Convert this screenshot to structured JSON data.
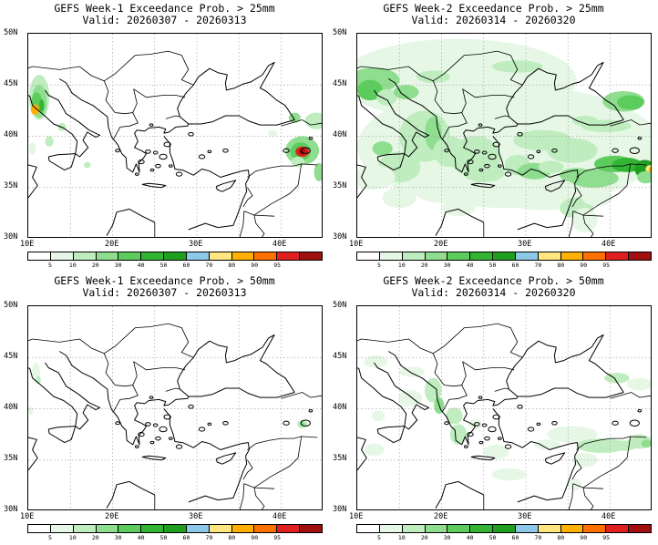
{
  "panels": [
    {
      "title": "GEFS Week-1 Exceedance Prob. > 25mm",
      "valid": "Valid: 20260307 - 20260313"
    },
    {
      "title": "GEFS Week-2 Exceedance Prob. > 25mm",
      "valid": "Valid: 20260314 - 20260320"
    },
    {
      "title": "GEFS Week-1 Exceedance Prob. > 50mm",
      "valid": "Valid: 20260307 - 20260313"
    },
    {
      "title": "GEFS Week-2 Exceedance Prob. > 50mm",
      "valid": "Valid: 20260314 - 20260320"
    }
  ],
  "lat_labels": [
    "50N",
    "45N",
    "40N",
    "35N",
    "30N"
  ],
  "lon_labels": [
    "10E",
    "20E",
    "30E",
    "40E"
  ],
  "colorbar": {
    "thresholds": [
      "5",
      "10",
      "20",
      "30",
      "40",
      "50",
      "60",
      "70",
      "80",
      "90",
      "95"
    ],
    "colors": [
      "#ffffff",
      "#e6f7e6",
      "#bfedbf",
      "#8fdd8f",
      "#5ccc5c",
      "#33b533",
      "#1f9e1f",
      "#8cc8e8",
      "#ffe680",
      "#ffb000",
      "#ff7000",
      "#e02020",
      "#a01010"
    ]
  }
}
